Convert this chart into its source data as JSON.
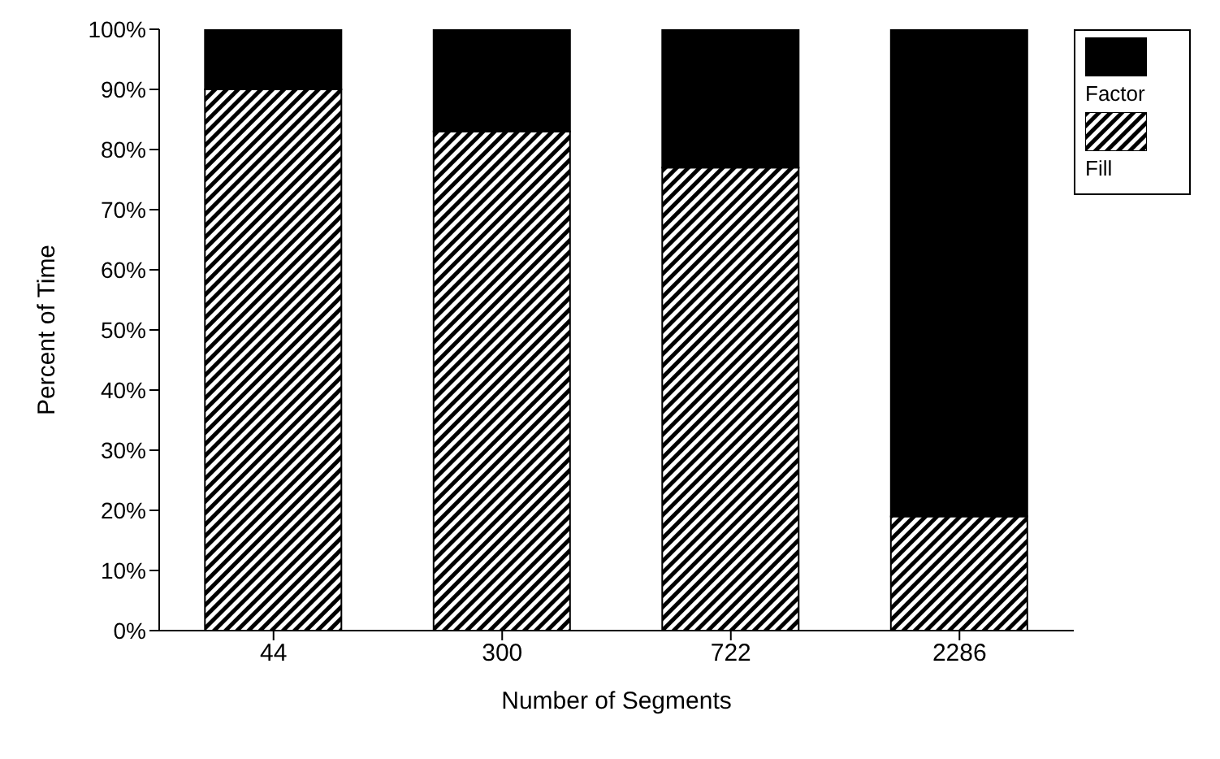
{
  "chart_data": {
    "type": "bar",
    "stacked": true,
    "xlabel": "Number of Segments",
    "ylabel": "Percent of Time",
    "categories": [
      "44",
      "300",
      "722",
      "2286"
    ],
    "series": [
      {
        "name": "Fill",
        "color": "#000000",
        "values": [
          90,
          83,
          77,
          19
        ]
      },
      {
        "name": "Factor",
        "color": "#000000",
        "values": [
          10,
          17,
          23,
          81
        ]
      }
    ],
    "ylim": [
      0,
      100
    ],
    "yticks": [
      {
        "value": 0,
        "label": "0%"
      },
      {
        "value": 10,
        "label": "10%"
      },
      {
        "value": 20,
        "label": "20%"
      },
      {
        "value": 30,
        "label": "30%"
      },
      {
        "value": 40,
        "label": "40%"
      },
      {
        "value": 50,
        "label": "50%"
      },
      {
        "value": 60,
        "label": "60%"
      },
      {
        "value": 70,
        "label": "70%"
      },
      {
        "value": 80,
        "label": "80%"
      },
      {
        "value": 90,
        "label": "90%"
      },
      {
        "value": 100,
        "label": "100%"
      }
    ],
    "grid": false,
    "legend": "top right"
  }
}
